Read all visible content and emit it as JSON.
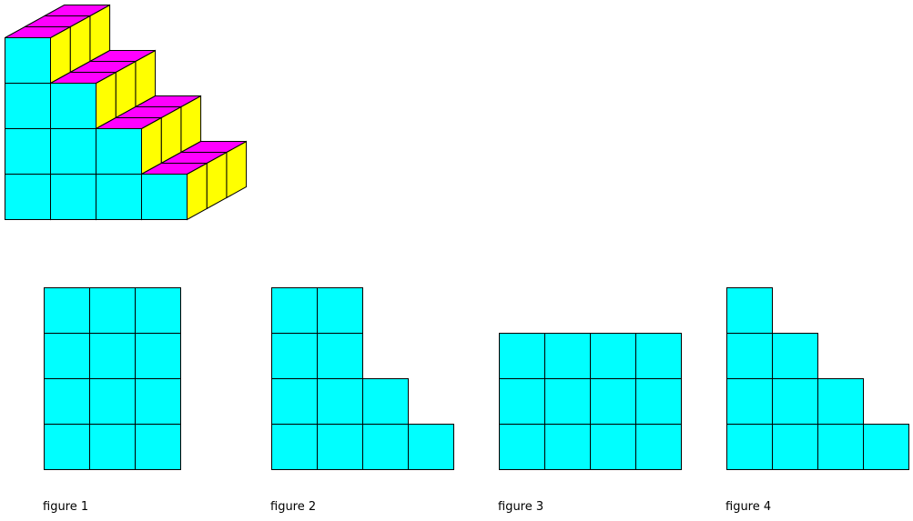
{
  "colors": {
    "front": "#00ffff",
    "top": "#ff00ff",
    "side": "#ffff00",
    "edge": "#000000"
  },
  "solid": {
    "column_heights": [
      4,
      3,
      2,
      1
    ],
    "depth": 3
  },
  "figures": [
    {
      "label": "figure 1",
      "column_heights": [
        4,
        4,
        4
      ]
    },
    {
      "label": "figure 2",
      "column_heights": [
        4,
        4,
        2,
        1
      ]
    },
    {
      "label": "figure 3",
      "column_heights": [
        3,
        3,
        3,
        3
      ]
    },
    {
      "label": "figure 4",
      "column_heights": [
        4,
        3,
        2,
        1
      ]
    }
  ]
}
